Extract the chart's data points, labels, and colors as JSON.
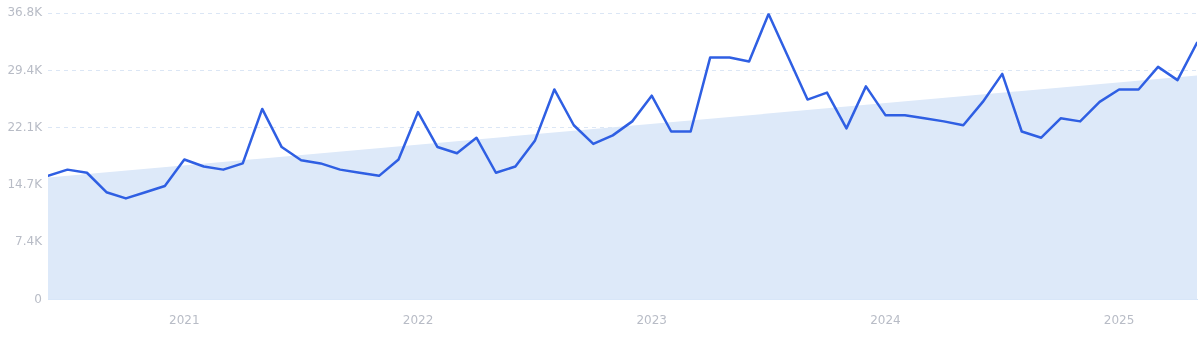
{
  "chart_data": {
    "type": "line",
    "x": [
      "2020-06",
      "2020-07",
      "2020-08",
      "2020-09",
      "2020-10",
      "2020-11",
      "2020-12",
      "2021-01",
      "2021-02",
      "2021-03",
      "2021-04",
      "2021-05",
      "2021-06",
      "2021-07",
      "2021-08",
      "2021-09",
      "2021-10",
      "2021-11",
      "2021-12",
      "2022-01",
      "2022-02",
      "2022-03",
      "2022-04",
      "2022-05",
      "2022-06",
      "2022-07",
      "2022-08",
      "2022-09",
      "2022-10",
      "2022-11",
      "2022-12",
      "2023-01",
      "2023-02",
      "2023-03",
      "2023-04",
      "2023-05",
      "2023-06",
      "2023-07",
      "2023-08",
      "2023-09",
      "2023-10",
      "2023-11",
      "2023-12",
      "2024-01",
      "2024-02",
      "2024-03",
      "2024-04",
      "2024-05",
      "2024-06",
      "2024-07",
      "2024-08",
      "2024-09",
      "2024-10",
      "2024-11",
      "2024-12",
      "2025-01",
      "2025-02",
      "2025-03",
      "2025-04",
      "2025-05"
    ],
    "series": [
      {
        "type": "area",
        "color": "#dde9f9",
        "x": [
          "2020-06",
          "2025-05"
        ],
        "values": [
          15700,
          28800
        ]
      },
      {
        "type": "line",
        "color": "#2f5fe3",
        "values": [
          15900,
          16700,
          16300,
          13800,
          13000,
          13800,
          14600,
          18000,
          17100,
          16700,
          17500,
          24500,
          19600,
          17900,
          17500,
          16700,
          16300,
          15900,
          18000,
          24100,
          19600,
          18800,
          20800,
          16300,
          17100,
          20400,
          27000,
          22400,
          20000,
          21100,
          22900,
          26200,
          21600,
          21600,
          31100,
          31100,
          30600,
          36700,
          31200,
          25700,
          26600,
          22000,
          27400,
          23700,
          23700,
          23300,
          22900,
          22400,
          25400,
          29000,
          21600,
          20800,
          23300,
          22900,
          25400,
          27000,
          27000,
          29900,
          28200,
          33000
        ]
      }
    ],
    "xlim": [
      "2020-06",
      "2025-05"
    ],
    "xticks": [
      {
        "value": "2021-01",
        "label": "2021"
      },
      {
        "value": "2022-01",
        "label": "2022"
      },
      {
        "value": "2023-01",
        "label": "2023"
      },
      {
        "value": "2024-01",
        "label": "2024"
      },
      {
        "value": "2025-01",
        "label": "2025"
      }
    ],
    "ylim": [
      0,
      36800
    ],
    "yticks": [
      0,
      {
        "value": 7400,
        "label": "7.4K"
      },
      {
        "value": 14700,
        "label": "14.7K"
      },
      {
        "value": 22100,
        "label": "22.1K"
      },
      {
        "value": 29400,
        "label": "29.4K"
      },
      {
        "value": 36800,
        "label": "36.8K"
      }
    ],
    "grid": "y",
    "line_style": "solid",
    "marker": "none",
    "legend": false
  }
}
